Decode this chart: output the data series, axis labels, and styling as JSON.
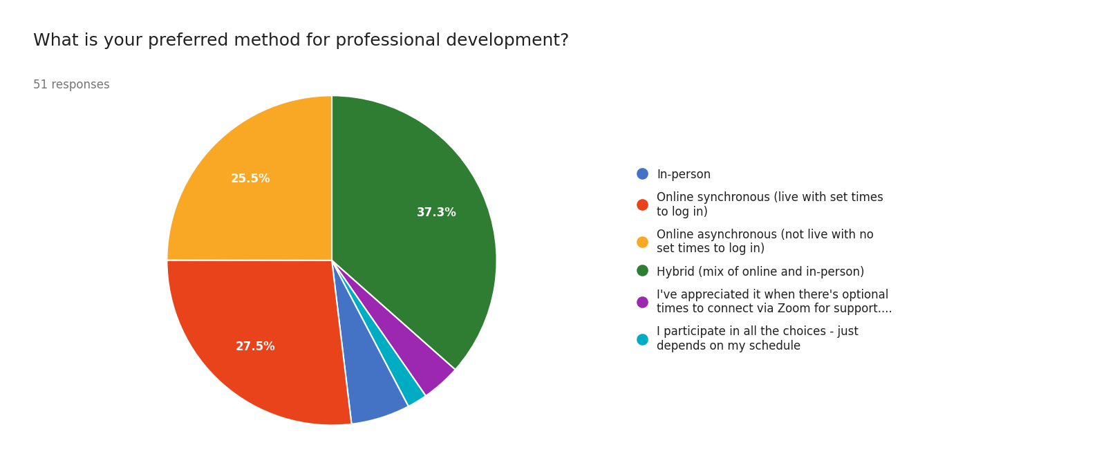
{
  "title": "What is your preferred method for professional development?",
  "subtitle": "51 responses",
  "slices": [
    {
      "label": "Hybrid (mix of online and in-person)",
      "pct": 37.3,
      "color": "#2E7D32"
    },
    {
      "label": "I've appreciated it when there's optional\ntimes to connect via Zoom for support....",
      "pct": 3.9,
      "color": "#9C27B0"
    },
    {
      "label": "I participate in all the choices - just\ndepends on my schedule",
      "pct": 2.0,
      "color": "#00ACC1"
    },
    {
      "label": "In-person",
      "pct": 5.9,
      "color": "#4472C4"
    },
    {
      "label": "Online synchronous (live with set times\nto log in)",
      "pct": 27.5,
      "color": "#E8431A"
    },
    {
      "label": "Online asynchronous (not live with no\nset times to log in)",
      "pct": 25.5,
      "color": "#F9A825"
    }
  ],
  "legend_order": [
    3,
    4,
    5,
    0,
    1,
    2
  ],
  "title_fontsize": 18,
  "subtitle_fontsize": 12,
  "label_fontsize": 12,
  "legend_fontsize": 12,
  "background_color": "#FFFFFF",
  "text_color": "#212121",
  "subtitle_color": "#757575",
  "pct_labels": [
    "37.3%",
    "",
    "",
    "",
    "27.5%",
    "25.5%"
  ],
  "pct_show": [
    true,
    false,
    false,
    false,
    true,
    true
  ]
}
